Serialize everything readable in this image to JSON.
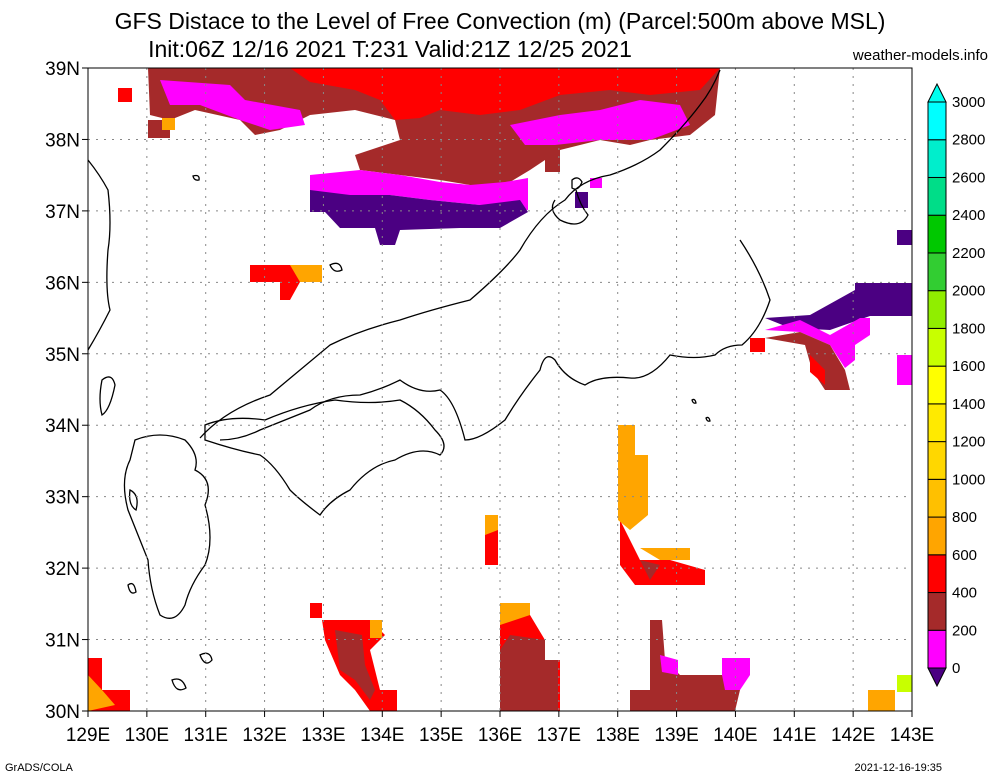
{
  "title_line1": "GFS Distace to the Level of Free Convection (m) (Parcel:500m above MSL)",
  "title_line2": "Init:06Z 12/16 2021 T:231 Valid:21Z 12/25 2021",
  "site": "weather-models.info",
  "footer_left": "GrADS/COLA",
  "footer_right": "2021-12-16-19:35",
  "map": {
    "lon_range": [
      129,
      143
    ],
    "lat_range": [
      30,
      39
    ],
    "lon_labels": [
      "129E",
      "130E",
      "131E",
      "132E",
      "133E",
      "134E",
      "135E",
      "136E",
      "137E",
      "138E",
      "139E",
      "140E",
      "141E",
      "142E",
      "143E"
    ],
    "lat_labels": [
      "30N",
      "31N",
      "32N",
      "33N",
      "34N",
      "35N",
      "36N",
      "37N",
      "38N",
      "39N"
    ],
    "gridlines": "dotted"
  },
  "colorbar": {
    "labels": [
      "0",
      "200",
      "400",
      "600",
      "800",
      "1000",
      "1200",
      "1400",
      "1600",
      "1800",
      "2000",
      "2200",
      "2400",
      "2600",
      "2800",
      "3000"
    ],
    "colors": [
      "#4b0082",
      "#ff00ff",
      "#a52a2a",
      "#ff0000",
      "#ffa500",
      "#ffc000",
      "#ffd700",
      "#ffea00",
      "#ffff00",
      "#c8ff00",
      "#90ee00",
      "#32cd32",
      "#00c800",
      "#00dd88",
      "#00eecc",
      "#00ffff",
      "#00ffee"
    ]
  }
}
